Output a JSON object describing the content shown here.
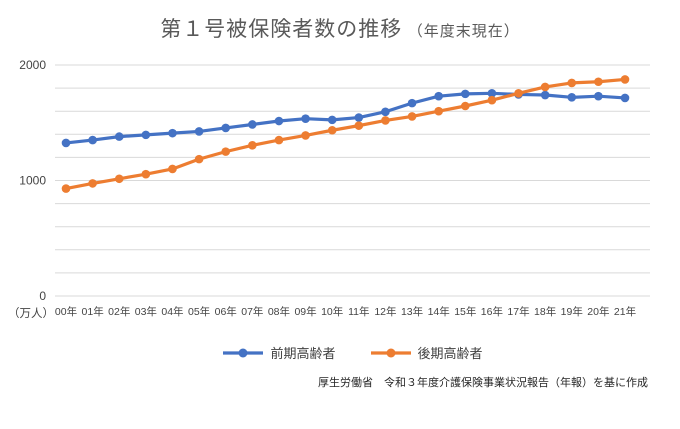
{
  "title": {
    "main": "第１号被保険者数の推移",
    "sub": "（年度末現在）"
  },
  "y_axis": {
    "unit": "（万人）",
    "tick_labels": [
      "0",
      "1000",
      "2000"
    ]
  },
  "source_note": "厚生労働省　令和３年度介護保険事業状況報告（年報）を基に作成",
  "colors": {
    "series_zenki": "#4472C4",
    "series_kouki": "#ED7D31",
    "gridline": "#D9D9D9",
    "title_text": "#595959",
    "axis_text": "#444444"
  },
  "chart_data": {
    "type": "line",
    "title": "第１号被保険者数の推移（年度末現在）",
    "categories": [
      "00年",
      "01年",
      "02年",
      "03年",
      "04年",
      "05年",
      "06年",
      "07年",
      "08年",
      "09年",
      "10年",
      "11年",
      "12年",
      "13年",
      "14年",
      "15年",
      "16年",
      "17年",
      "18年",
      "19年",
      "20年",
      "21年"
    ],
    "series": [
      {
        "name": "前期高齢者",
        "color": "#4472C4",
        "values": [
          1325,
          1350,
          1380,
          1395,
          1410,
          1425,
          1455,
          1485,
          1515,
          1535,
          1525,
          1545,
          1595,
          1670,
          1730,
          1750,
          1755,
          1745,
          1740,
          1720,
          1730,
          1715
        ]
      },
      {
        "name": "後期高齢者",
        "color": "#ED7D31",
        "values": [
          930,
          975,
          1015,
          1055,
          1100,
          1185,
          1250,
          1305,
          1350,
          1390,
          1435,
          1475,
          1520,
          1555,
          1600,
          1645,
          1695,
          1755,
          1810,
          1845,
          1855,
          1875
        ]
      }
    ],
    "xlabel": "",
    "ylabel": "（万人）",
    "ylim": [
      0,
      2000
    ],
    "yticks": [
      0,
      1000,
      2000
    ],
    "gridline_step": 200,
    "grid": true,
    "legend_position": "bottom",
    "source": "厚生労働省　令和３年度介護保険事業状況報告（年報）を基に作成"
  }
}
